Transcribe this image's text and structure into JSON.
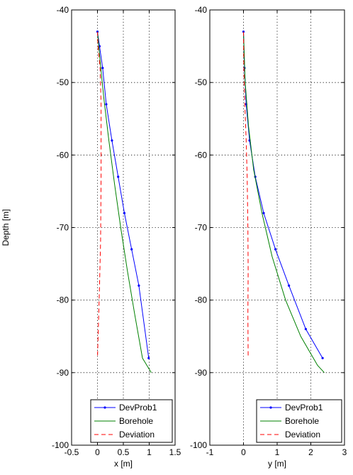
{
  "chart_data": [
    {
      "type": "line",
      "xlabel": "x [m]",
      "ylabel": "Depth [m]",
      "xlim": [
        -0.5,
        1.5
      ],
      "ylim": [
        -100,
        -40
      ],
      "xticks": [
        -0.5,
        0,
        0.5,
        1,
        1.5
      ],
      "xtick_labels": [
        "-0.5",
        "0",
        "0.5",
        "1",
        "1.5"
      ],
      "yticks": [
        -40,
        -50,
        -60,
        -70,
        -80,
        -90,
        -100
      ],
      "ytick_labels": [
        "-40",
        "-50",
        "-60",
        "-70",
        "-80",
        "-90",
        "-100"
      ],
      "grid": true,
      "legend_position": "bottom-right",
      "series": [
        {
          "name": "DevProb1",
          "color": "#0000ff",
          "style": "solid-dots",
          "x": [
            0.0,
            0.04,
            0.1,
            0.17,
            0.28,
            0.4,
            0.52,
            0.66,
            0.8,
            0.99
          ],
          "y": [
            -43,
            -45,
            -48,
            -53,
            -58,
            -63,
            -68,
            -73,
            -78,
            -88
          ]
        },
        {
          "name": "Borehole",
          "color": "#008000",
          "style": "solid",
          "x": [
            0.0,
            0.05,
            0.12,
            0.22,
            0.33,
            0.45,
            0.58,
            0.72,
            0.87,
            1.04
          ],
          "y": [
            -43,
            -47,
            -52,
            -58,
            -64,
            -70,
            -76,
            -82,
            -88,
            -90
          ]
        },
        {
          "name": "Deviation",
          "color": "#ff0000",
          "style": "dashed",
          "x": [
            0.0,
            0.01,
            0.05,
            0.07,
            0.07,
            0.06,
            0.04,
            0.02,
            0.0
          ],
          "y": [
            -43,
            -45,
            -48,
            -53,
            -63,
            -72,
            -78,
            -83,
            -88
          ]
        }
      ]
    },
    {
      "type": "line",
      "xlabel": "y [m]",
      "ylabel": "",
      "xlim": [
        -1,
        3
      ],
      "ylim": [
        -100,
        -40
      ],
      "xticks": [
        -1,
        0,
        1,
        2,
        3
      ],
      "xtick_labels": [
        "-1",
        "0",
        "1",
        "2",
        "3"
      ],
      "yticks": [
        -40,
        -50,
        -60,
        -70,
        -80,
        -90,
        -100
      ],
      "ytick_labels": [
        "-40",
        "-50",
        "-60",
        "-70",
        "-80",
        "-90",
        "-100"
      ],
      "grid": true,
      "legend_position": "bottom-right",
      "series": [
        {
          "name": "DevProb1",
          "color": "#0000ff",
          "style": "solid-dots",
          "x": [
            0.0,
            0.03,
            0.08,
            0.18,
            0.35,
            0.6,
            0.95,
            1.35,
            1.85,
            2.35
          ],
          "y": [
            -43,
            -48,
            -53,
            -58,
            -63,
            -68,
            -73,
            -78,
            -84,
            -88
          ]
        },
        {
          "name": "Borehole",
          "color": "#008000",
          "style": "solid",
          "x": [
            0.0,
            0.05,
            0.15,
            0.3,
            0.55,
            0.85,
            1.25,
            1.7,
            2.2,
            2.4
          ],
          "y": [
            -43,
            -50,
            -56,
            -62,
            -68,
            -74,
            -80,
            -85,
            -89,
            -90
          ]
        },
        {
          "name": "Deviation",
          "color": "#ff0000",
          "style": "dashed",
          "x": [
            0.0,
            0.01,
            0.04,
            0.08,
            0.11,
            0.13,
            0.14,
            0.13,
            0.14
          ],
          "y": [
            -43,
            -48,
            -53,
            -58,
            -63,
            -70,
            -76,
            -82,
            -88
          ]
        }
      ]
    }
  ]
}
